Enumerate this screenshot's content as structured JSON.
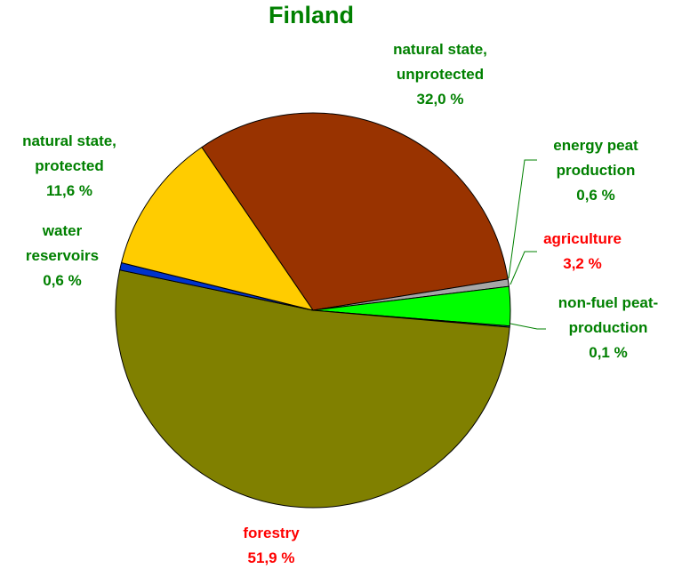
{
  "chart_data": {
    "type": "pie",
    "title": "Finland",
    "categories": [
      "natural state, unprotected",
      "energy peat production",
      "agriculture",
      "non-fuel peat-production",
      "forestry",
      "water reservoirs",
      "natural state, protected"
    ],
    "values": [
      32.0,
      0.6,
      3.2,
      0.1,
      51.9,
      0.6,
      11.6
    ],
    "value_labels": [
      "32,0 %",
      "0,6 %",
      "3,2 %",
      "0,1 %",
      "51,9 %",
      "0,6 %",
      "11,6 %"
    ],
    "colors": [
      "#993300",
      "#a6a6a6",
      "#00ff00",
      "#33cccc",
      "#808000",
      "#0033cc",
      "#ffcc00"
    ],
    "label_colors": [
      "#008000",
      "#008000",
      "#ff0000",
      "#008000",
      "#ff0000",
      "#008000",
      "#008000"
    ]
  }
}
